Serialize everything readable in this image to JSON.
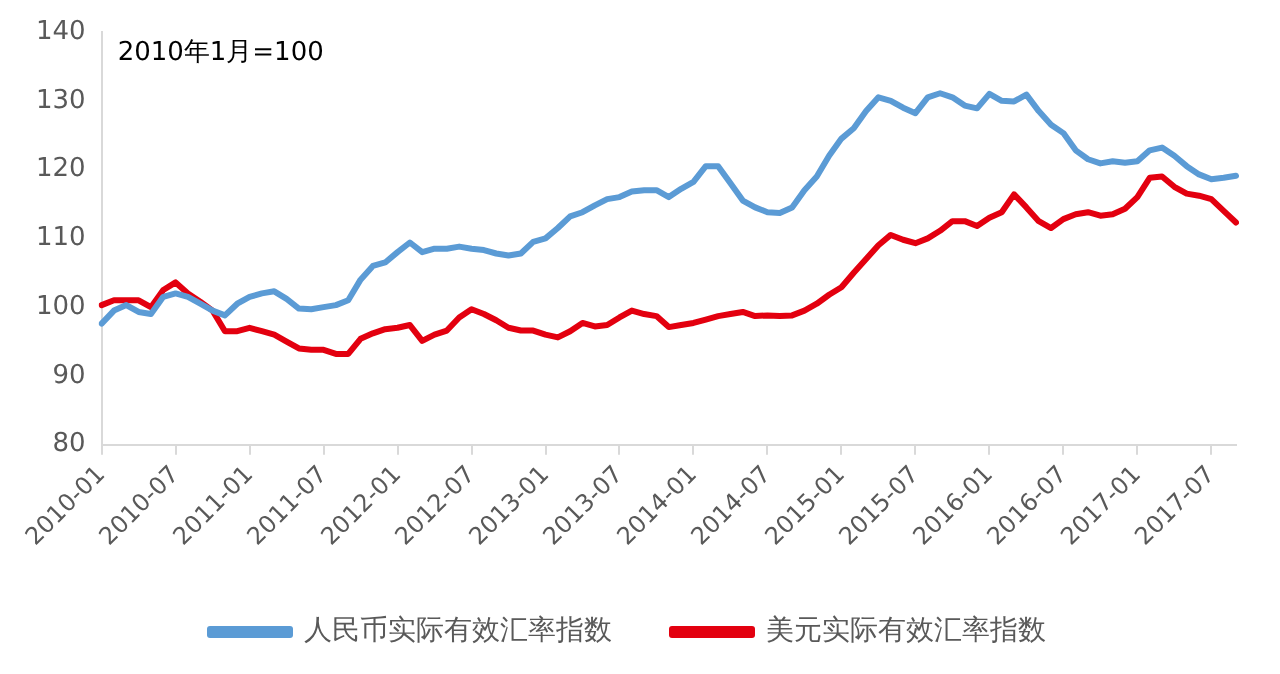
{
  "chart_data": {
    "type": "line",
    "annotations": [
      "2010年1月=100"
    ],
    "categories": [
      "2010-01",
      null,
      null,
      null,
      null,
      null,
      "2010-07",
      null,
      null,
      null,
      null,
      null,
      "2011-01",
      null,
      null,
      null,
      null,
      null,
      "2011-07",
      null,
      null,
      null,
      null,
      null,
      "2012-01",
      null,
      null,
      null,
      null,
      null,
      "2012-07",
      null,
      null,
      null,
      null,
      null,
      "2013-01",
      null,
      null,
      null,
      null,
      null,
      "2013-07",
      null,
      null,
      null,
      null,
      null,
      "2014-01",
      null,
      null,
      null,
      null,
      null,
      "2014-07",
      null,
      null,
      null,
      null,
      null,
      "2015-01",
      null,
      null,
      null,
      null,
      null,
      "2015-07",
      null,
      null,
      null,
      null,
      null,
      "2016-01",
      null,
      null,
      null,
      null,
      null,
      "2016-07",
      null,
      null,
      null,
      null,
      null,
      "2017-01",
      null,
      null,
      null,
      null,
      null,
      "2017-07",
      null,
      null
    ],
    "series": [
      {
        "name": "人民币实际有效汇率指数",
        "color": "#5b9bd5",
        "values": [
          97.6,
          99.5,
          100.3,
          99.3,
          99,
          101.5,
          102,
          101.5,
          100.5,
          99.5,
          98.8,
          100.5,
          101.5,
          102,
          102.3,
          101.2,
          99.8,
          99.7,
          100,
          100.3,
          101,
          104,
          106,
          106.5,
          108,
          109.4,
          108,
          108.5,
          108.5,
          108.8,
          108.5,
          108.3,
          107.8,
          107.5,
          107.8,
          109.5,
          110,
          111.5,
          113.2,
          113.8,
          114.8,
          115.7,
          116,
          116.8,
          117,
          117,
          116,
          117.2,
          118.2,
          120.5,
          120.5,
          118,
          115.5,
          114.5,
          113.8,
          113.7,
          114.5,
          117,
          119,
          122,
          124.5,
          126,
          128.5,
          130.5,
          130,
          129,
          128.2,
          130.5,
          131.1,
          130.5,
          129.3,
          128.9,
          131,
          130,
          129.9,
          130.9,
          128.5,
          126.5,
          125.3,
          122.8,
          121.5,
          120.9,
          121.2,
          121,
          121.2,
          122.8,
          123.2,
          122,
          120.5,
          119.3,
          118.6,
          118.8,
          119.1
        ]
      },
      {
        "name": "美元实际有效汇率指数",
        "color": "#e3000f",
        "values": [
          100.3,
          101,
          101,
          101,
          100,
          102.5,
          103.6,
          102,
          100.8,
          99.5,
          96.5,
          96.5,
          97,
          96.5,
          96,
          95,
          94,
          93.8,
          93.8,
          93.2,
          93.2,
          95.4,
          96.2,
          96.8,
          97,
          97.4,
          95.1,
          96,
          96.6,
          98.5,
          99.7,
          99,
          98.1,
          97,
          96.6,
          96.6,
          96,
          95.6,
          96.5,
          97.7,
          97.2,
          97.4,
          98.5,
          99.5,
          99,
          98.7,
          97.1,
          97.4,
          97.7,
          98.2,
          98.7,
          99,
          99.3,
          98.7,
          98.8,
          98.7,
          98.8,
          99.5,
          100.5,
          101.8,
          102.9,
          105,
          107,
          109,
          110.5,
          109.8,
          109.3,
          110,
          111.1,
          112.5,
          112.5,
          111.8,
          113,
          113.8,
          116.4,
          114.5,
          112.5,
          111.5,
          112.8,
          113.5,
          113.8,
          113.3,
          113.5,
          114.3,
          116,
          118.8,
          119,
          117.5,
          116.5,
          116.2,
          115.7,
          114,
          112.3
        ]
      }
    ],
    "ylim": [
      80,
      140
    ],
    "yticks": [
      80,
      90,
      100,
      110,
      120,
      130,
      140
    ],
    "legend": "bottom",
    "grid": false,
    "marker": "none",
    "line_style": "solid"
  }
}
